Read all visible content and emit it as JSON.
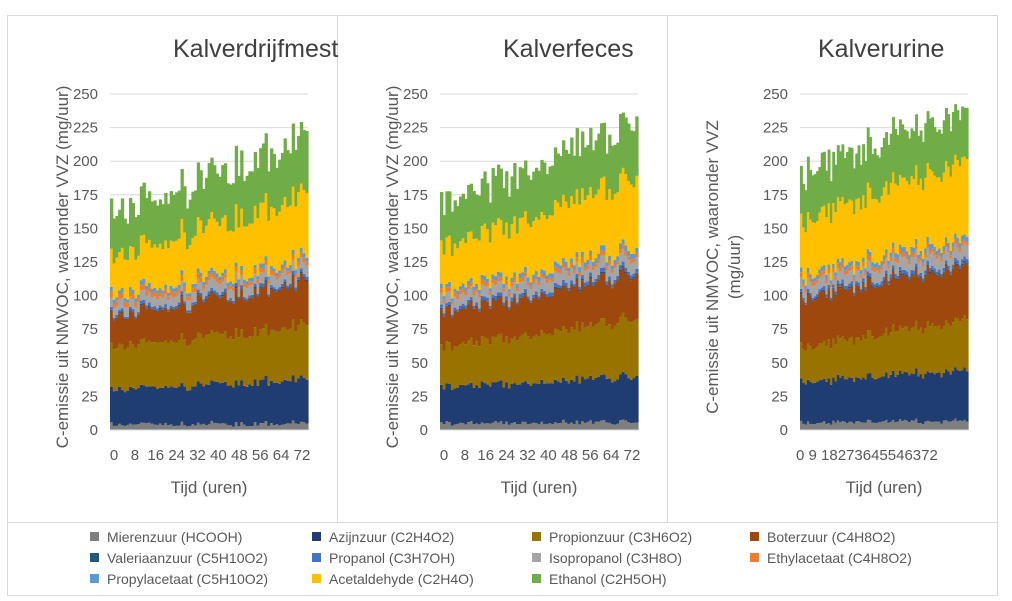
{
  "chart_data": [
    {
      "type": "area",
      "title": "Kalverdrijfmest",
      "xlabel": "Tijd (uren)",
      "ylabel": "C-emissie uit NMVOC, waaronder VVZ (mg/uur)",
      "ylim": [
        0,
        250
      ],
      "y_ticks": [
        "0",
        "25",
        "50",
        "75",
        "100",
        "125",
        "150",
        "175",
        "200",
        "225",
        "250"
      ],
      "x_ticks": [
        "0",
        "8",
        "16",
        "24",
        "32",
        "40",
        "48",
        "56",
        "64",
        "72"
      ],
      "x_range": [
        0,
        72
      ],
      "stacked": true,
      "series_start": [
        4,
        26,
        32,
        22,
        0.5,
        2,
        7,
        4,
        3,
        28,
        32
      ],
      "series_end": [
        5,
        33,
        40,
        32,
        1,
        2,
        8,
        3,
        3,
        48,
        42
      ]
    },
    {
      "type": "area",
      "title": "Kalverfeces",
      "xlabel": "Tijd (uren)",
      "ylabel": "C-emissie uit NMVOC, waaronder VVZ (mg/uur)",
      "ylim": [
        0,
        250
      ],
      "y_ticks": [
        "0",
        "25",
        "50",
        "75",
        "100",
        "125",
        "150",
        "175",
        "200",
        "225",
        "250"
      ],
      "x_ticks": [
        "0",
        "8",
        "16",
        "24",
        "32",
        "40",
        "48",
        "56",
        "64",
        "72"
      ],
      "x_range": [
        0,
        72
      ],
      "stacked": true,
      "series_start": [
        5,
        27,
        30,
        25,
        0.5,
        2,
        8,
        3,
        3,
        32,
        33
      ],
      "series_end": [
        6,
        34,
        43,
        33,
        1,
        3,
        9,
        3,
        4,
        52,
        42
      ]
    },
    {
      "type": "area",
      "title": "Kalverurine",
      "xlabel": "Tijd (uren)",
      "ylabel": "C-emissie uit NMVOC, waaronder VVZ (mg/uur)",
      "ylim": [
        0,
        250
      ],
      "y_ticks": [
        "0",
        "25",
        "50",
        "75",
        "100",
        "125",
        "150",
        "175",
        "200",
        "225",
        "250"
      ],
      "x_ticks": [
        "0",
        "9",
        "18",
        "27",
        "36",
        "45",
        "54",
        "63",
        "72"
      ],
      "x_tick_text": "0 9 18273645546372",
      "x_range": [
        0,
        72
      ],
      "stacked": true,
      "series_start": [
        5,
        30,
        25,
        36,
        0.5,
        2,
        8,
        3,
        3,
        40,
        35
      ],
      "series_end": [
        7,
        38,
        38,
        40,
        1,
        3,
        10,
        3,
        4,
        58,
        38
      ]
    }
  ],
  "legend": [
    {
      "name": "Mierenzuur (HCOOH)",
      "color": "#7f7f7f"
    },
    {
      "name": "Azijnzuur (C2H4O2)",
      "color": "#203d72"
    },
    {
      "name": "Propionzuur (C3H6O2)",
      "color": "#997300"
    },
    {
      "name": "Boterzuur (C4H8O2)",
      "color": "#9e480e"
    },
    {
      "name": "Valeriaanzuur (C5H10O2)",
      "color": "#26557e"
    },
    {
      "name": "Propanol (C3H7OH)",
      "color": "#4472c4"
    },
    {
      "name": "Isopropanol (C3H8O)",
      "color": "#a5a5a5"
    },
    {
      "name": "Ethylacetaat (C4H8O2)",
      "color": "#ed7d31"
    },
    {
      "name": "Propylacetaat (C5H10O2)",
      "color": "#5b9bd5"
    },
    {
      "name": "Acetaldehyde (C2H4O)",
      "color": "#ffc000"
    },
    {
      "name": "Ethanol (C2H5OH)",
      "color": "#70ad47"
    }
  ]
}
